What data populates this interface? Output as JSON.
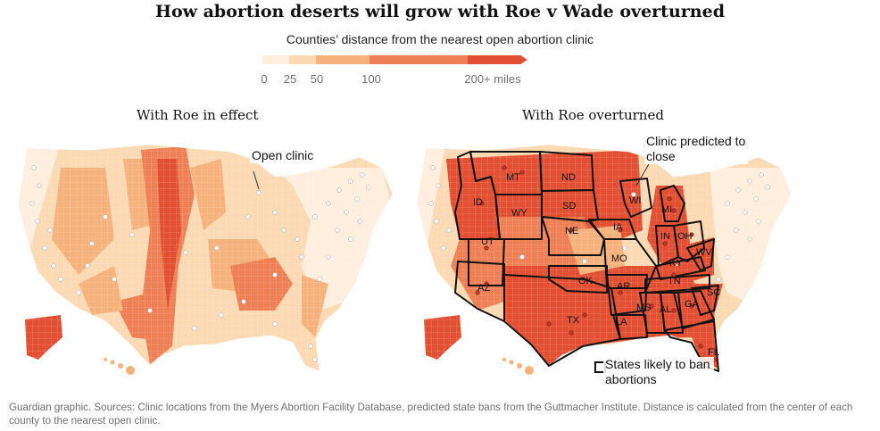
{
  "title": "How abortion deserts will grow with Roe v Wade overturned",
  "subtitle": "Counties’ distance from the nearest open abortion clinic",
  "legend": {
    "ticks": [
      "0",
      "25",
      "50",
      "100",
      "200+ miles"
    ],
    "colors": [
      "#fdeede",
      "#fbd9b3",
      "#f6b27c",
      "#ee8056",
      "#e24f33"
    ]
  },
  "maps": {
    "left": {
      "title": "With Roe in effect",
      "annotation": "Open clinic"
    },
    "right": {
      "title": "With Roe overturned",
      "annotation_close": "Clinic predicted to close",
      "annotation_states": "States likely to ban abortions",
      "state_labels": [
        "MT",
        "ND",
        "SD",
        "WY",
        "ID",
        "UT",
        "NE",
        "IA",
        "WI",
        "MI",
        "IN",
        "OH",
        "KY",
        "WV",
        "MO",
        "OK",
        "AR",
        "TN",
        "SC",
        "GA",
        "AL",
        "MS",
        "LA",
        "TX",
        "AZ",
        "FL"
      ]
    }
  },
  "footer": "Guardian graphic. Sources: Clinic locations from the Myers Abortion Facility Database, predicted state bans from the Guttmacher Institute. Distance is calculated from the center of each county to the nearest open clinic."
}
